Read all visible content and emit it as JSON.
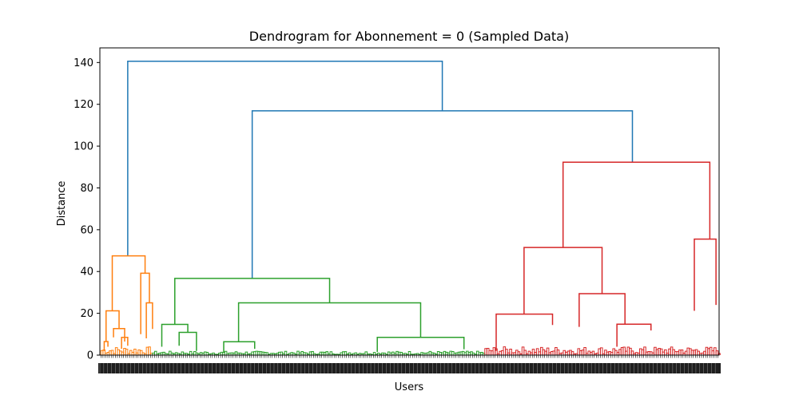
{
  "chart_data": {
    "type": "dendrogram",
    "title": "Dendrogram for Abonnement = 0 (Sampled Data)",
    "xlabel": "Users",
    "ylabel": "Distance",
    "ylim": [
      0,
      147
    ],
    "y_ticks": [
      0,
      20,
      40,
      60,
      80,
      100,
      120,
      140
    ],
    "grid": false,
    "legend": "none",
    "leaf_labels": "dense, illegible",
    "leaf_count_approx": 300,
    "cluster_colors": {
      "orange": "#ff7f0e",
      "green": "#2ca02c",
      "red": "#d62728",
      "above_threshold": "#1f77b4"
    },
    "links": [
      {
        "color": "#1f77b4",
        "x_left": 0.045,
        "x_right": 0.553,
        "y_left": 47.5,
        "y_right": 116.9,
        "height": 140.6
      },
      {
        "color": "#1f77b4",
        "x_left": 0.246,
        "x_right": 0.86,
        "y_left": 36.7,
        "y_right": 92.3,
        "height": 116.9
      },
      {
        "color": "#ff7f0e",
        "x_left": 0.02,
        "x_right": 0.073,
        "y_left": 21.2,
        "y_right": 39.2,
        "height": 47.5
      },
      {
        "color": "#ff7f0e",
        "x_left": 0.01,
        "x_right": 0.031,
        "y_left": 6.5,
        "y_right": 12.7,
        "height": 21.2
      },
      {
        "color": "#ff7f0e",
        "x_left": 0.007,
        "x_right": 0.013,
        "y_left": 2,
        "y_right": 4,
        "height": 6.5
      },
      {
        "color": "#ff7f0e",
        "x_left": 0.022,
        "x_right": 0.04,
        "y_left": 8.5,
        "y_right": 6.5,
        "height": 12.7
      },
      {
        "color": "#ff7f0e",
        "x_left": 0.035,
        "x_right": 0.045,
        "y_left": 3,
        "y_right": 4.5,
        "height": 8.5
      },
      {
        "color": "#ff7f0e",
        "x_left": 0.066,
        "x_right": 0.08,
        "y_left": 10,
        "y_right": 25,
        "height": 39.2
      },
      {
        "color": "#ff7f0e",
        "x_left": 0.075,
        "x_right": 0.085,
        "y_left": 8,
        "y_right": 12.5,
        "height": 25
      },
      {
        "color": "#2ca02c",
        "x_left": 0.121,
        "x_right": 0.371,
        "y_left": 14.7,
        "y_right": 25,
        "height": 36.7
      },
      {
        "color": "#2ca02c",
        "x_left": 0.1,
        "x_right": 0.142,
        "y_left": 4,
        "y_right": 10.9,
        "height": 14.7
      },
      {
        "color": "#2ca02c",
        "x_left": 0.128,
        "x_right": 0.156,
        "y_left": 4.5,
        "y_right": 2,
        "height": 10.9
      },
      {
        "color": "#2ca02c",
        "x_left": 0.224,
        "x_right": 0.518,
        "y_left": 6.4,
        "y_right": 8.5,
        "height": 25
      },
      {
        "color": "#2ca02c",
        "x_left": 0.2,
        "x_right": 0.25,
        "y_left": 1.5,
        "y_right": 3,
        "height": 6.4
      },
      {
        "color": "#2ca02c",
        "x_left": 0.448,
        "x_right": 0.588,
        "y_left": 1.5,
        "y_right": 2.8,
        "height": 8.5
      },
      {
        "color": "#d62728",
        "x_left": 0.748,
        "x_right": 0.985,
        "y_left": 51.5,
        "y_right": 55.5,
        "height": 92.3
      },
      {
        "color": "#d62728",
        "x_left": 0.685,
        "x_right": 0.811,
        "y_left": 19.6,
        "y_right": 29.4,
        "height": 51.5
      },
      {
        "color": "#d62728",
        "x_left": 0.64,
        "x_right": 0.731,
        "y_left": 2,
        "y_right": 14.4,
        "height": 19.6
      },
      {
        "color": "#d62728",
        "x_left": 0.774,
        "x_right": 0.848,
        "y_left": 13.5,
        "y_right": 14.8,
        "height": 29.4
      },
      {
        "color": "#d62728",
        "x_left": 0.835,
        "x_right": 0.89,
        "y_left": 4,
        "y_right": 11.8,
        "height": 14.8
      },
      {
        "color": "#d62728",
        "x_left": 0.96,
        "x_right": 0.995,
        "y_left": 21.2,
        "y_right": 24,
        "height": 55.5
      }
    ]
  }
}
